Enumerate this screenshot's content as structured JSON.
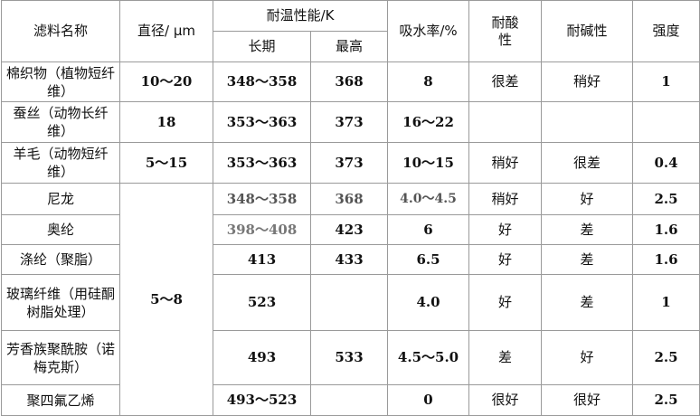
{
  "table": {
    "headers": {
      "name": "滤料名称",
      "diameter": "直径/ μm",
      "temp": "耐温性能/K",
      "temp_long": "长期",
      "temp_max": "最高",
      "absorb": "吸水率/%",
      "acid": "耐酸性",
      "alkali": "耐碱性",
      "strength": "强度"
    },
    "rows": [
      {
        "name": "棉织物（植物短纤维）",
        "diameter": "10～20",
        "long": "348～358",
        "max": "368",
        "absorb": "8",
        "acid": "很差",
        "alkali": "稍好",
        "strength": "1"
      },
      {
        "name": "蚕丝（动物长纤维）",
        "diameter": "18",
        "long": "353～363",
        "max": "373",
        "absorb": "16～22",
        "acid": "",
        "alkali": "",
        "strength": ""
      },
      {
        "name": "羊毛（动物短纤维）",
        "diameter": "5～15",
        "long": "353～363",
        "max": "373",
        "absorb": "10～15",
        "acid": "稍好",
        "alkali": "很差",
        "strength": "0.4"
      },
      {
        "name": "尼龙",
        "diameter": "5～8",
        "long": "348～358",
        "max": "368",
        "absorb": "4.0～4.5",
        "acid": "稍好",
        "alkali": "好",
        "strength": "2.5"
      },
      {
        "name": "奥纶",
        "long": "398～408",
        "max": "423",
        "absorb": "6",
        "acid": "好",
        "alkali": "差",
        "strength": "1.6"
      },
      {
        "name": "涤纶（聚脂）",
        "long": "413",
        "max": "433",
        "absorb": "6.5",
        "acid": "好",
        "alkali": "差",
        "strength": "1.6"
      },
      {
        "name": "玻璃纤维（用硅酮树脂处理）",
        "long": "523",
        "max": "",
        "absorb": "4.0",
        "acid": "好",
        "alkali": "差",
        "strength": "1"
      },
      {
        "name": "芳香族聚酰胺（诺梅克斯）",
        "long": "493",
        "max": "533",
        "absorb": "4.5～5.0",
        "acid": "差",
        "alkali": "好",
        "strength": "2.5"
      },
      {
        "name": "聚四氟乙烯",
        "long": "493～523",
        "max": "",
        "absorb": "0",
        "acid": "很好",
        "alkali": "很好",
        "strength": "2.5"
      }
    ]
  }
}
